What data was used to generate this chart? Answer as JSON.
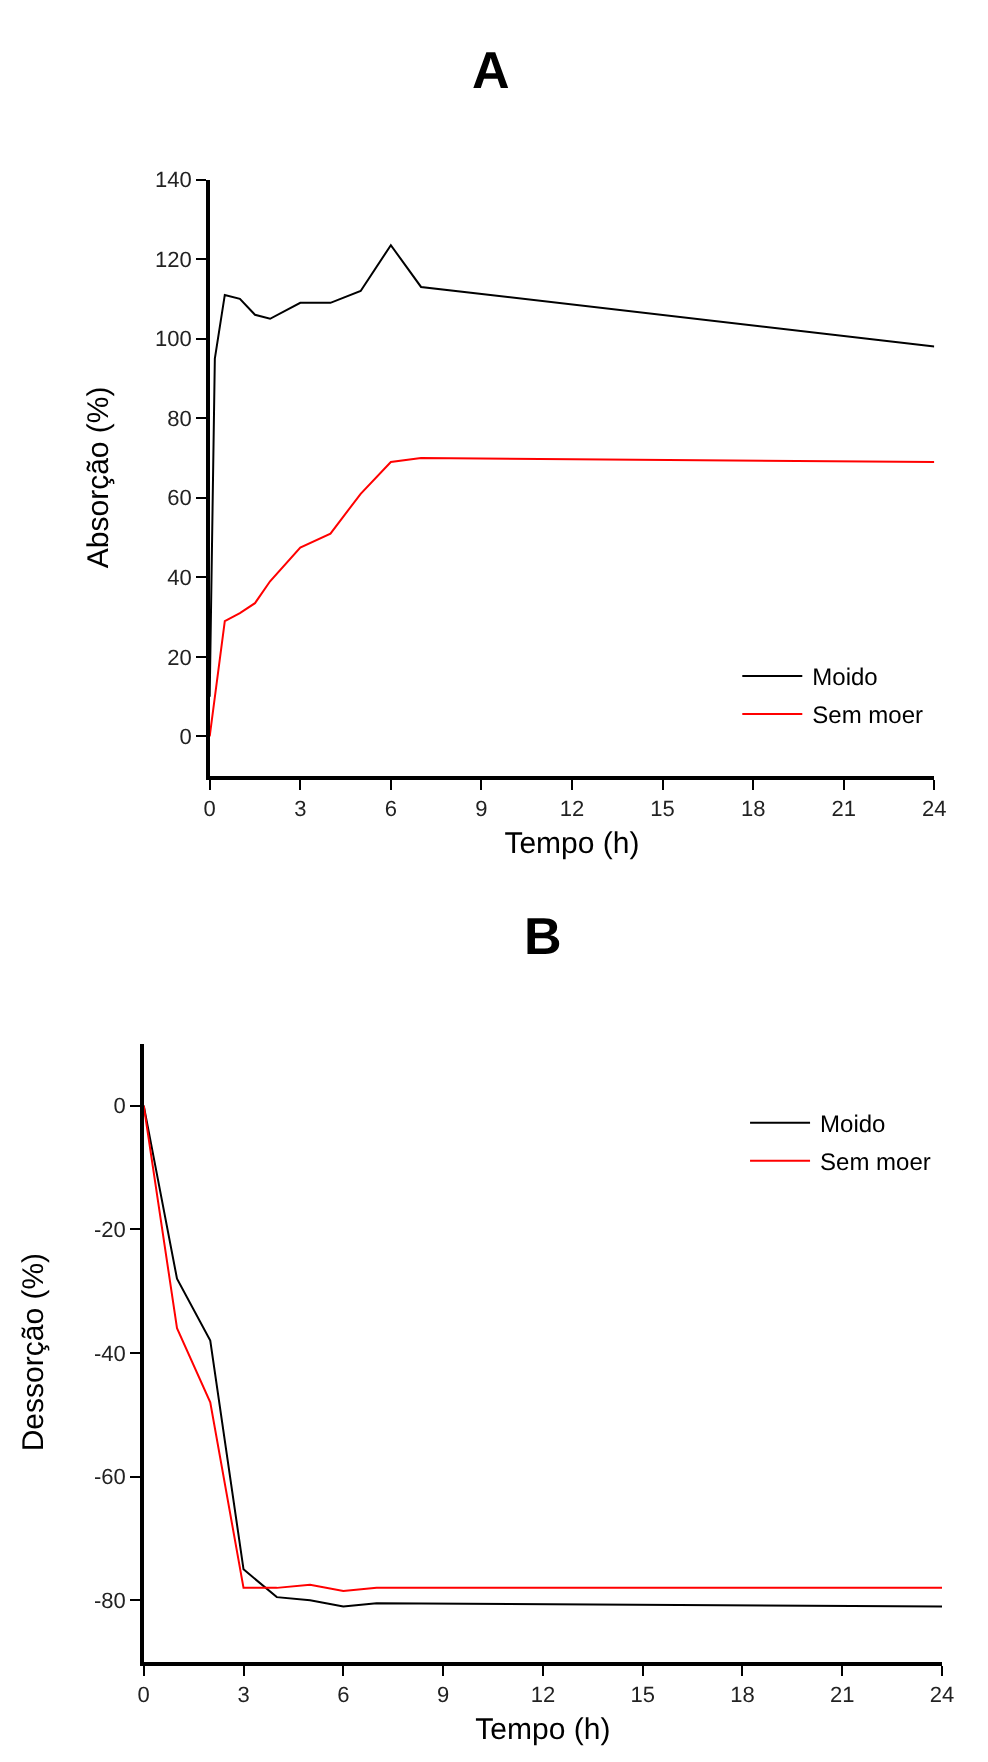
{
  "chart_data": [
    {
      "type": "line",
      "title": "A",
      "xlabel": "Tempo (h)",
      "ylabel": "Absorção (%)",
      "xlim": [
        0,
        24
      ],
      "xticks": [
        0,
        3,
        6,
        9,
        12,
        15,
        18,
        21,
        24
      ],
      "ylim": [
        -10,
        140
      ],
      "yticks": [
        0,
        20,
        40,
        60,
        80,
        100,
        120,
        140
      ],
      "legend": "bottom right",
      "marker": "none",
      "line_style": "solid",
      "series": [
        {
          "name": "Moido",
          "color": "#000000",
          "x": [
            0,
            0.17,
            0.5,
            1,
            1.5,
            2,
            3,
            4,
            5,
            6,
            7,
            24
          ],
          "values": [
            10,
            95,
            111,
            110,
            106,
            105,
            109,
            109,
            112,
            123.5,
            113,
            98
          ]
        },
        {
          "name": "Sem moer",
          "color": "#ff0000",
          "x": [
            0,
            0.5,
            1,
            1.5,
            2,
            3,
            4,
            5,
            6,
            7,
            24
          ],
          "values": [
            0,
            29,
            31,
            33.5,
            39,
            47.5,
            51,
            61,
            69,
            70,
            69
          ]
        }
      ]
    },
    {
      "type": "line",
      "title": "B",
      "xlabel": "Tempo (h)",
      "ylabel": "Dessorção (%)",
      "xlim": [
        0,
        24
      ],
      "xticks": [
        0,
        3,
        6,
        9,
        12,
        15,
        18,
        21,
        24
      ],
      "ylim": [
        -90,
        10
      ],
      "yticks": [
        -80,
        -60,
        -40,
        -20,
        0
      ],
      "legend": "top right",
      "marker": "none",
      "line_style": "solid",
      "series": [
        {
          "name": "Moido",
          "color": "#000000",
          "x": [
            0,
            1,
            2,
            3,
            4,
            5,
            6,
            7,
            24
          ],
          "values": [
            0,
            -28,
            -38,
            -75,
            -79.5,
            -80,
            -81,
            -80.5,
            -81
          ]
        },
        {
          "name": "Sem moer",
          "color": "#ff0000",
          "x": [
            0,
            1,
            2,
            3,
            4,
            5,
            6,
            7,
            24
          ],
          "values": [
            0,
            -36,
            -48,
            -78,
            -78,
            -77.5,
            -78.5,
            -78,
            -78
          ]
        }
      ]
    }
  ]
}
